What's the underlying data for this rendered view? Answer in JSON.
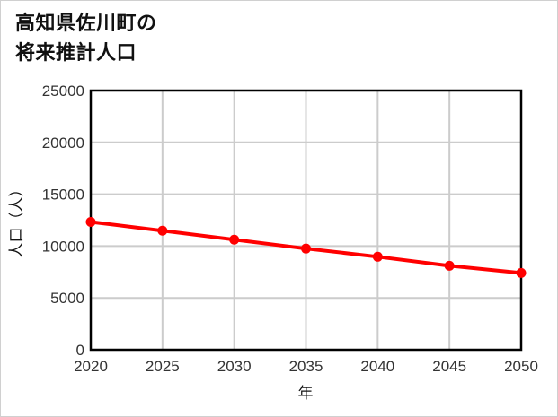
{
  "title": {
    "line1": "高知県佐川町の",
    "line2": "将来推計人口"
  },
  "colors": {
    "series": "#ff0000",
    "grid": "#cccccc",
    "axis": "#000000",
    "border": "#d0d0d0"
  },
  "chart_data": {
    "type": "line",
    "title": "高知県佐川町の将来推計人口",
    "xlabel": "年",
    "ylabel": "人口（人）",
    "x": [
      2020,
      2025,
      2030,
      2035,
      2040,
      2045,
      2050
    ],
    "series": [
      {
        "name": "人口",
        "values": [
          12330,
          11480,
          10620,
          9760,
          8970,
          8100,
          7410
        ]
      }
    ],
    "xlim": [
      2020,
      2050
    ],
    "ylim": [
      0,
      25000
    ],
    "xticks": [
      "2020",
      "2025",
      "2030",
      "2035",
      "2040",
      "2045",
      "2050"
    ],
    "yticks": [
      "0",
      "5000",
      "10000",
      "15000",
      "20000",
      "25000"
    ],
    "grid": true,
    "legend": "none"
  }
}
